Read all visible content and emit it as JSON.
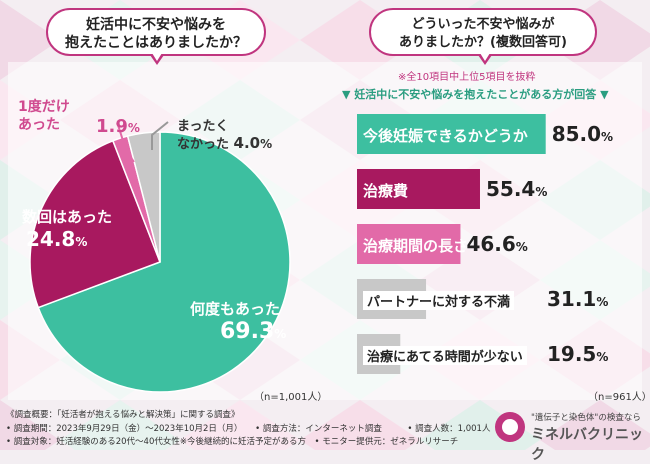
{
  "left": {
    "question": [
      "妊活中に不安や悩みを",
      "抱えたことはありましたか？"
    ],
    "n": "（n=1,001人）",
    "labels": [
      {
        "line1": "何度もあった",
        "value": "69.3",
        "unit": "%"
      },
      {
        "line1": "数回はあった",
        "value": "24.8",
        "unit": "%"
      },
      {
        "line1": "1度だけ",
        "line2": "あった",
        "value": "1.9",
        "unit": "%"
      },
      {
        "line1": "まったく",
        "line2": "なかった",
        "value": "4.0",
        "unit": "%"
      }
    ]
  },
  "right": {
    "question": [
      "どういった不安や悩みが",
      "ありましたか？(複数回答可)"
    ],
    "note": "※全10項目中上位5項目を抜粋",
    "subtitle": "▼ 妊活中に不安や悩みを抱えたことがある方が回答 ▼",
    "n": "（n=961人）",
    "bars": [
      {
        "label": "今後妊娠できるかどうか",
        "value": "85.0",
        "unit": "%"
      },
      {
        "label": "治療費",
        "value": "55.4",
        "unit": "%"
      },
      {
        "label": "治療期間の長さ",
        "value": "46.6",
        "unit": "%"
      },
      {
        "label": "パートナーに対する不満",
        "value": "31.1",
        "unit": "%"
      },
      {
        "label": "治療にあてる時間が少ない",
        "value": "19.5",
        "unit": "%"
      }
    ]
  },
  "footer": {
    "lines": [
      "《調査概要：「妊活者が抱える悩みと解決策」に関する調査》",
      "• 調査期間：2023年9月29日（金）〜2023年10月2日（月）　　• 調査方法：インターネット調査　　　• 調査人数：1,001人",
      "• 調査対象：妊活経験のある20代〜40代女性※今後継続的に妊活予定がある方　• モニター提供元：ゼネラルリサーチ"
    ],
    "brand_tagline": "\"遺伝子と染色体\"の検査なら",
    "brand_name": "ミネルバクリニック"
  },
  "colors": {
    "teal": "#3dbfa0",
    "magenta": "#a8195f",
    "pink": "#e26aa8",
    "gray": "#c8c8c8",
    "accent": "#c0357f"
  },
  "chart_data": [
    {
      "type": "pie",
      "categories": [
        "何度もあった",
        "数回はあった",
        "1度だけあった",
        "まったくなかった"
      ],
      "values": [
        69.3,
        24.8,
        1.9,
        4.0
      ],
      "colors": [
        "#3dbfa0",
        "#a8195f",
        "#e26aa8",
        "#c8c8c8"
      ]
    },
    {
      "type": "bar",
      "orientation": "horizontal",
      "categories": [
        "今後妊娠できるかどうか",
        "治療費",
        "治療期間の長さ",
        "パートナーに対する不満",
        "治療にあてる時間が少ない"
      ],
      "values": [
        85.0,
        55.4,
        46.6,
        31.1,
        19.5
      ],
      "colors": [
        "#3dbfa0",
        "#a8195f",
        "#e26aa8",
        "#c8c8c8",
        "#c8c8c8"
      ],
      "xlim": [
        0,
        100
      ]
    }
  ]
}
